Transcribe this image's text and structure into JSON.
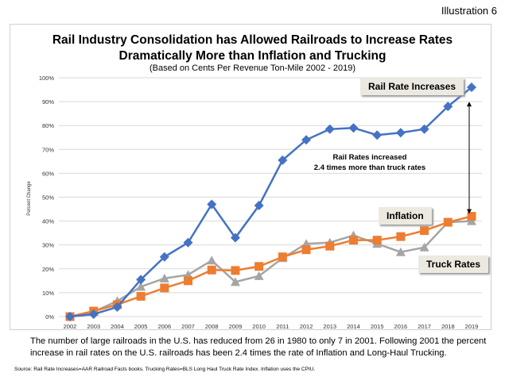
{
  "illustration": "Illustration 6",
  "chart_data": {
    "type": "line",
    "title": "Rail Industry Consolidation has Allowed Railroads to Increase Rates",
    "title_line2": "Dramatically More than Inflation and Trucking",
    "subtitle": "(Based on Cents Per Revenue Ton-Mile 2002 - 2019)",
    "ylabel": "Percent Change",
    "ylim": [
      0,
      100
    ],
    "yticks": [
      "0%",
      "10%",
      "20%",
      "30%",
      "40%",
      "50%",
      "60%",
      "70%",
      "80%",
      "90%",
      "100%"
    ],
    "grid": true,
    "categories": [
      "2002",
      "2003",
      "2004",
      "2005",
      "2006",
      "2007",
      "2008",
      "2009",
      "2010",
      "2011",
      "2012",
      "2013",
      "2014",
      "2015",
      "2016",
      "2017",
      "2018",
      "2019"
    ],
    "series": [
      {
        "name": "Rail Rate Increases",
        "color": "#4472c4",
        "marker": "diamond",
        "values": [
          0,
          1,
          4,
          15.5,
          25,
          31,
          47,
          33,
          46.5,
          65.5,
          74,
          78.5,
          79,
          76,
          77,
          78.5,
          88,
          96
        ]
      },
      {
        "name": "Truck Rates",
        "color": "#a5a5a5",
        "marker": "triangle",
        "values": [
          0,
          2,
          6.5,
          12.5,
          16,
          17.5,
          23.5,
          14.5,
          17,
          24.5,
          30.5,
          31,
          34,
          30.5,
          27,
          29,
          39.5,
          40
        ]
      },
      {
        "name": "Inflation",
        "color": "#ed7d31",
        "marker": "square",
        "values": [
          0,
          2.3,
          5,
          8.5,
          12,
          15,
          19.5,
          19.3,
          21,
          25,
          28,
          29.5,
          32,
          32,
          33.5,
          36,
          39.5,
          42
        ]
      }
    ],
    "annotation": "Rail Rates increased",
    "annotation_line2": "2.4 times more than truck rates"
  },
  "footnote": "The number of large railroads in the U.S. has reduced from 26 in 1980 to only 7 in 2001. Following 2001 the percent increase in rail rates on the U.S. railroads has been 2.4 times the rate of Inflation and Long-Haul Trucking.",
  "source": "Source: Rail Rate Increases=AAR Railroad Facts books. Trucking Rates=BLS Long Haul Truck Rate Index. Inflation uses the CPIU."
}
